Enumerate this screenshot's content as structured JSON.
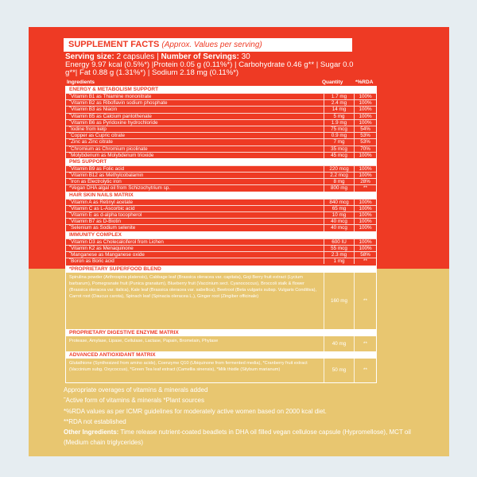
{
  "colors": {
    "red": "#ee3a24",
    "yellow": "#e8c670",
    "background": "#e6edf1"
  },
  "header": {
    "title": "SUPPLEMENT FACTS",
    "subtitle": "(Approx. Values per serving)",
    "serving_size_label": "Serving size:",
    "serving_size_value": "2 capsules |",
    "servings_label": "Number of Servings:",
    "servings_value": "30",
    "nutrition": "Energy 9.97 kcal (0.5%*) |Protein 0.05 g (0.11%*) | Carbohydrate 0.46 g** | Sugar 0.0 g**| Fat 0.88 g (1.31%*) | Sodium 2.18 mg (0.11%*)"
  },
  "columns": {
    "ingredients": "Ingredients",
    "quantity": "Quantity",
    "rda": "*%RDA"
  },
  "sections": [
    {
      "title": "ENERGY & METABOLISM SUPPORT",
      "rows": [
        {
          "name": "˜Vitamin B1 as Thiamine mononitrate",
          "qty": "1.7 mg",
          "rda": "100%"
        },
        {
          "name": "˜Vitamin B2 as Riboflavin sodium phosphate",
          "qty": "2.4 mg",
          "rda": "100%"
        },
        {
          "name": "˜Vitamin B3 as Niacin",
          "qty": "14 mg",
          "rda": "100%"
        },
        {
          "name": "˜Vitamin B5 as Calcium pantothenate",
          "qty": "5 mg",
          "rda": "100%"
        },
        {
          "name": "˜Vitamin B6 as Pyridoxine hydrochloride",
          "qty": "1.9 mg",
          "rda": "100%"
        },
        {
          "name": "˜Iodine from kelp",
          "qty": "75 mcg",
          "rda": "54%"
        },
        {
          "name": "˜Copper as Cupric citrate",
          "qty": "0.9 mg",
          "rda": "53%"
        },
        {
          "name": "˜Zinc as Zinc citrate",
          "qty": "7 mg",
          "rda": "53%"
        },
        {
          "name": "˜Chromium as Chromium picolinate",
          "qty": "35 mcg",
          "rda": "70%"
        },
        {
          "name": "˜Molybdenum as Molybdenum trioxide",
          "qty": "45 mcg",
          "rda": "100%"
        }
      ]
    },
    {
      "title": "PMS SUPPORT",
      "rows": [
        {
          "name": "˜Vitamin B9 as Folic acid",
          "qty": "220 mcg",
          "rda": "100%"
        },
        {
          "name": "˜Vitamin B12 as Methylcobalamin",
          "qty": "2.2 mcg",
          "rda": "100%"
        },
        {
          "name": "˜Iron as Electrolytic iron",
          "qty": "8 mg",
          "rda": "28%"
        },
        {
          "name": "*Vegan DHA algal oil from Schizochytrium sp.",
          "qty": "800 mg",
          "rda": "**"
        }
      ]
    },
    {
      "title": "HAIR SKIN NAILS MATRIX",
      "rows": [
        {
          "name": "˜Vitamin A as Retinyl acetate",
          "qty": "840 mcg",
          "rda": "100%"
        },
        {
          "name": "˜Vitamin C as L-Ascorbic acid",
          "qty": "65 mg",
          "rda": "100%"
        },
        {
          "name": "˜Vitamin E as d-alpha tocopherol",
          "qty": "10 mg",
          "rda": "100%"
        },
        {
          "name": "˜Vitamin B7 as D-Biotin",
          "qty": "40 mcg",
          "rda": "100%"
        },
        {
          "name": "˜Selenium as Sodium selenite",
          "qty": "40 mcg",
          "rda": "100%"
        }
      ]
    },
    {
      "title": "IMMUNITY COMPLEX",
      "rows": [
        {
          "name": "˜Vitamin D3 as Cholecalciferol from Lichen",
          "qty": "600 IU",
          "rda": "100%"
        },
        {
          "name": "˜Vitamin K2 as Menaquinone",
          "qty": "55 mcg",
          "rda": "100%"
        },
        {
          "name": "˜Manganese as Manganese oxide",
          "qty": "2.3 mg",
          "rda": "58%"
        },
        {
          "name": "˜Boron as Boric acid",
          "qty": "1 mg",
          "rda": "**"
        }
      ]
    }
  ],
  "blends": [
    {
      "title": "*PROPRIETARY SUPERFOOD BLEND",
      "text": "Spirulina powder (Arthrospira platensis), Cabbage leaf (Brassica oleracea var. capitata), Goji Berry fruit extract (Lycium barbarum), Pomegranate fruit (Punica granatum), Blueberry fruit (Vaccinium sect. Cyanococcus), Broccoli stalk & flower (Brassica oleracea var. italica), Kale leaf (Brassica oleracea var. sabellica), Beetroot (Beta vulgaris subsp. Vulgaris Conditiva), Carrot root (Daucus carota), Spinach leaf (Spinacia oleracea L.), Ginger root (Zingiber officinale)",
      "qty": "160 mg",
      "rda": "**"
    },
    {
      "title": "PROPRIETARY DIGESTIVE ENZYME MATRIX",
      "text": "Protease, Amylase, Lipase, Cellulase, Lactase, Papain, Bromelain, Phytase",
      "qty": "40 mg",
      "rda": "**"
    },
    {
      "title": "ADVANCED ANTIOXIDANT MATRIX",
      "text": "Glutathione (Synthesized from amino acids), Coenzyme Q10 (Ubiquinone from fermented media), *Cranberry fruit extract (Vaccinium subg. Oxycoccus), *Green Tea leaf extract (Camellia sinensis), *Milk thistle (Silybum marianum)",
      "qty": "50 mg",
      "rda": "**"
    }
  ],
  "footnotes": [
    "Appropriate overages of vitamins & minerals added",
    "˜Active form of vitamins & minerals *Plant sources",
    "*%RDA values as per ICMR guidelines for moderately active women based on  2000 kcal diet.",
    "**RDA not established"
  ],
  "other_ingredients": {
    "label": "Other Ingredients:",
    "text": "Time release nutrient-coated beadlets in DHA oil filled  vegan cellulose capsule (Hypromellose), MCT oil (Medium chain triglycerides)"
  }
}
